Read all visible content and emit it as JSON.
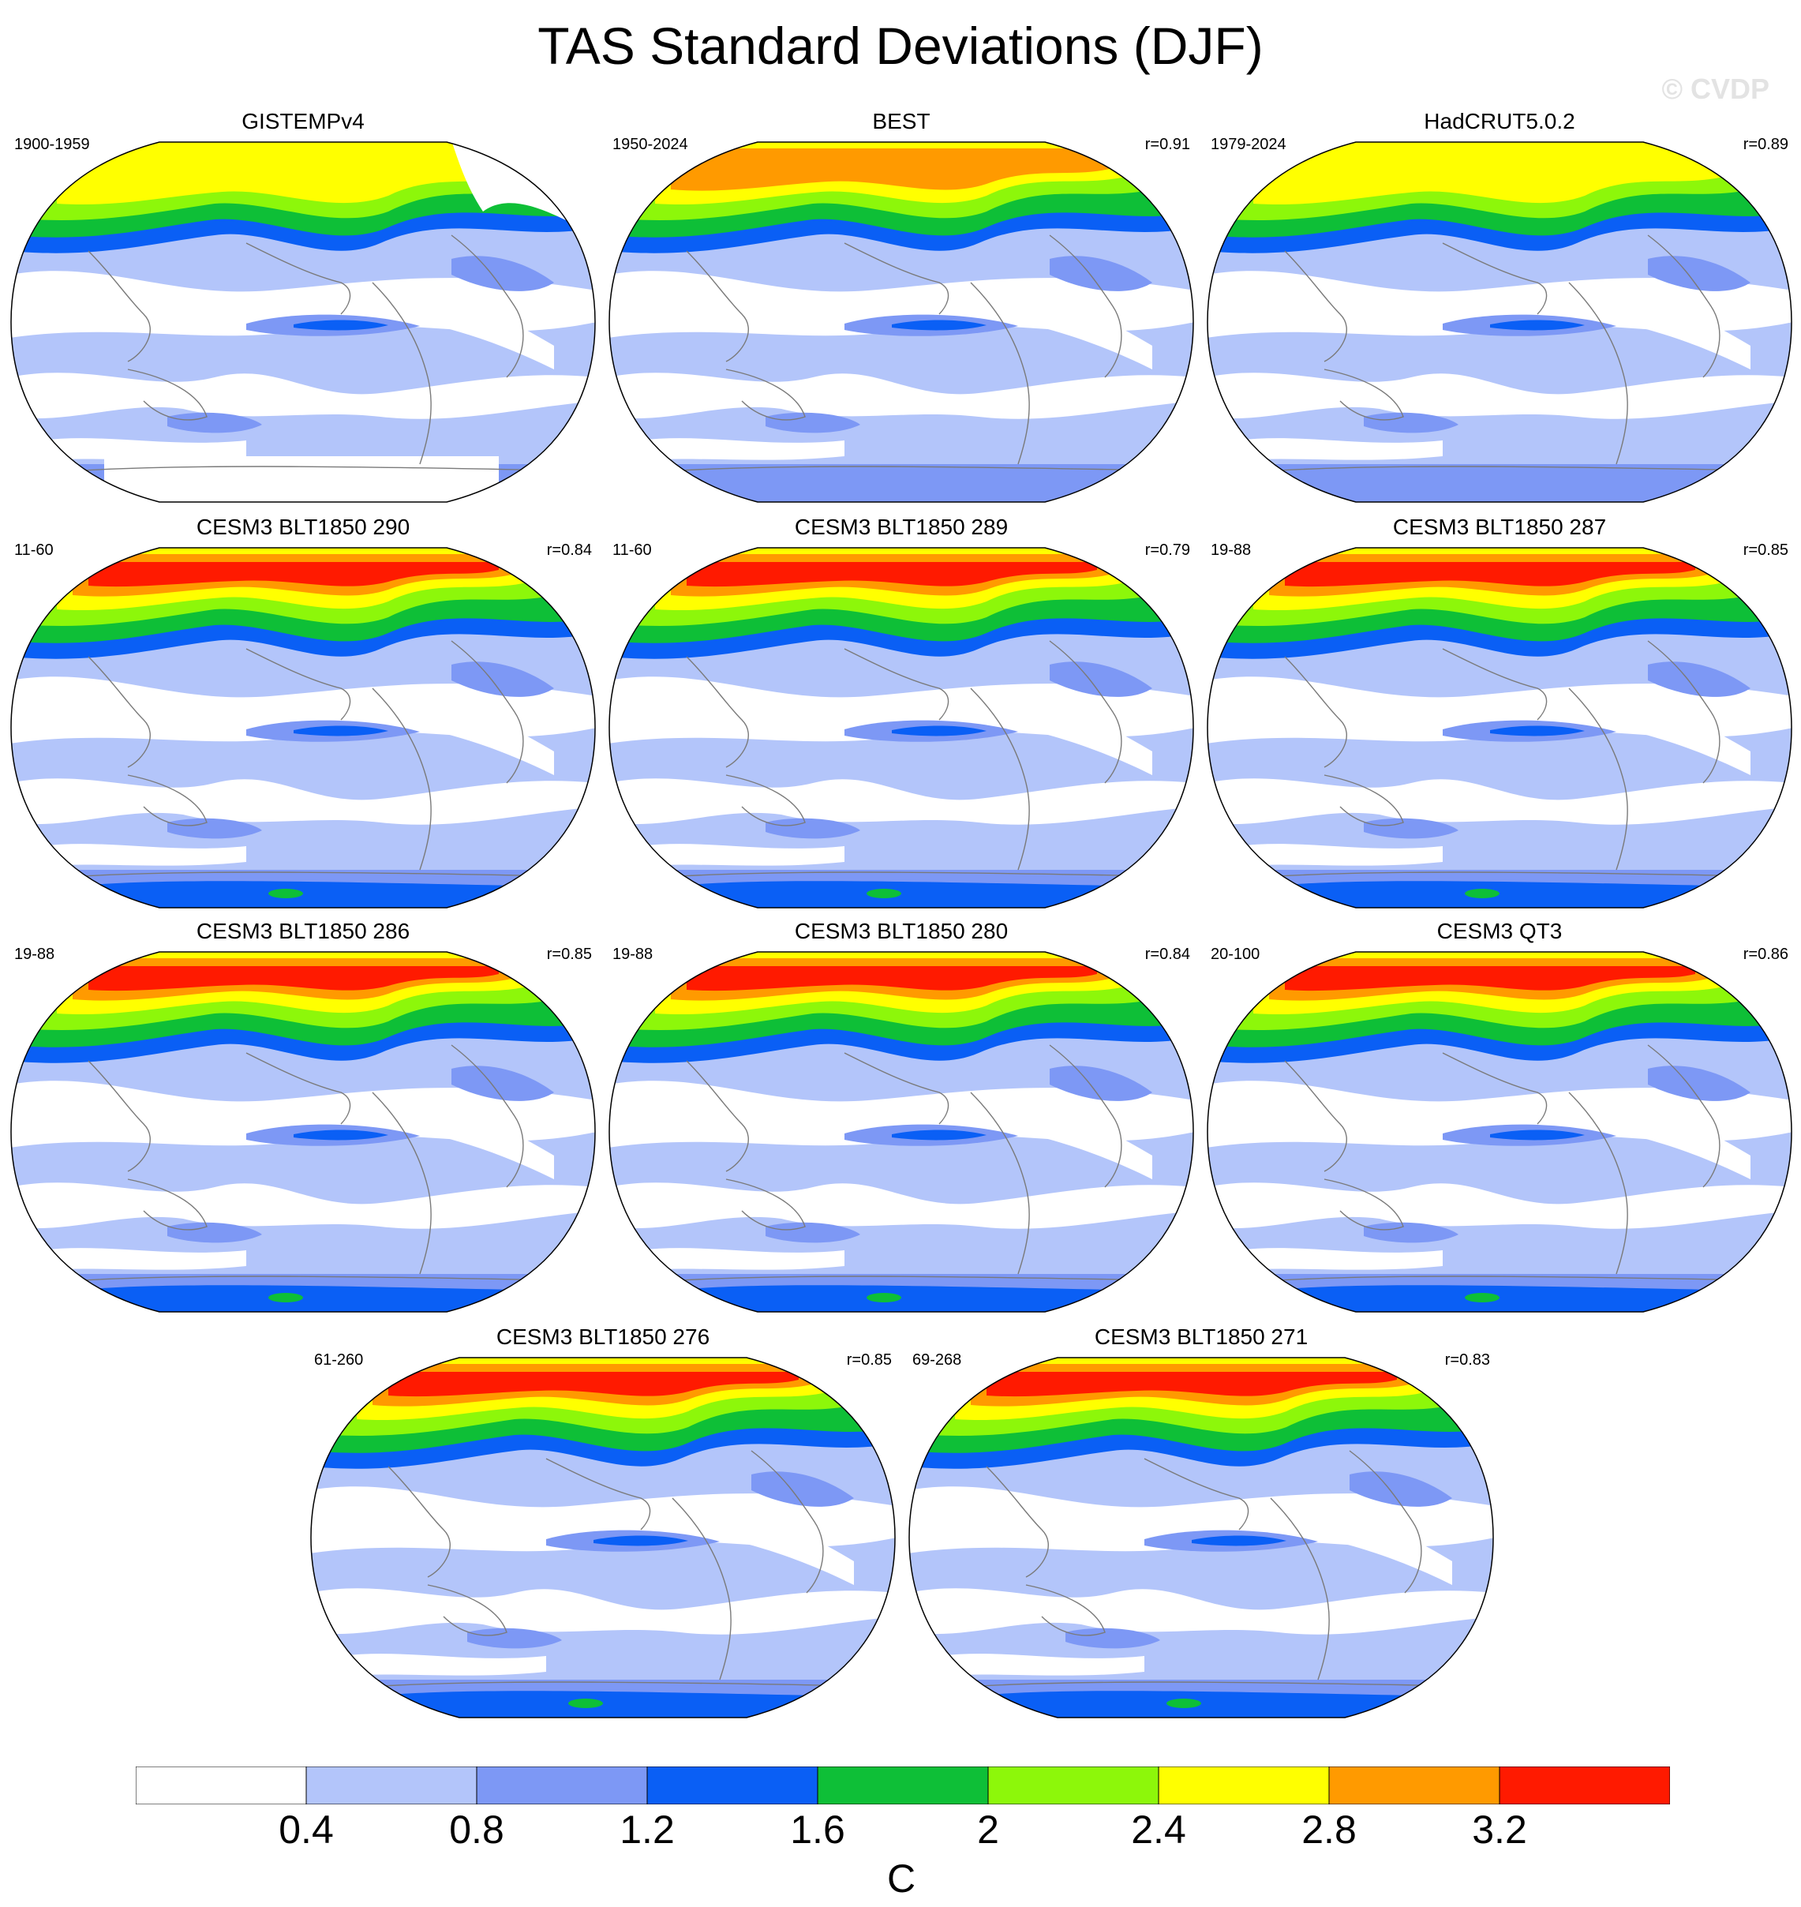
{
  "title": "TAS Standard Deviations (DJF)",
  "copyright": "© CVDP",
  "units": "C",
  "colorbar": {
    "labels": [
      "0.4",
      "0.8",
      "1.2",
      "1.6",
      "2",
      "2.4",
      "2.8",
      "3.2"
    ],
    "colors": [
      "#ffffff",
      "#b3c5fa",
      "#7d98f5",
      "#0a5ff5",
      "#0ebf37",
      "#8df70a",
      "#ffff00",
      "#ff9a00",
      "#ff1a00"
    ]
  },
  "panels": [
    {
      "title": "GISTEMPv4",
      "period": "1900-1959",
      "corr": "",
      "intensity": 0.55,
      "hole": true
    },
    {
      "title": "BEST",
      "period": "1950-2024",
      "corr": "r=0.91",
      "intensity": 0.6,
      "hole": false
    },
    {
      "title": "HadCRUT5.0.2",
      "period": "1979-2024",
      "corr": "r=0.89",
      "intensity": 0.5,
      "hole": false
    },
    {
      "title": "CESM3 BLT1850 290",
      "period": "11-60",
      "corr": "r=0.84",
      "intensity": 1.0,
      "hole": false
    },
    {
      "title": "CESM3 BLT1850 289",
      "period": "11-60",
      "corr": "r=0.79",
      "intensity": 1.0,
      "hole": false
    },
    {
      "title": "CESM3 BLT1850 287",
      "period": "19-88",
      "corr": "r=0.85",
      "intensity": 1.0,
      "hole": false
    },
    {
      "title": "CESM3 BLT1850 286",
      "period": "19-88",
      "corr": "r=0.85",
      "intensity": 1.0,
      "hole": false
    },
    {
      "title": "CESM3 BLT1850 280",
      "period": "19-88",
      "corr": "r=0.84",
      "intensity": 1.0,
      "hole": false
    },
    {
      "title": "CESM3 QT3",
      "period": "20-100",
      "corr": "r=0.86",
      "intensity": 1.0,
      "hole": false
    },
    {
      "title": "CESM3 BLT1850 276",
      "period": "61-260",
      "corr": "r=0.85",
      "intensity": 1.0,
      "hole": false
    },
    {
      "title": "CESM3 BLT1850 271",
      "period": "69-268",
      "corr": "r=0.83",
      "intensity": 1.0,
      "hole": false
    }
  ]
}
